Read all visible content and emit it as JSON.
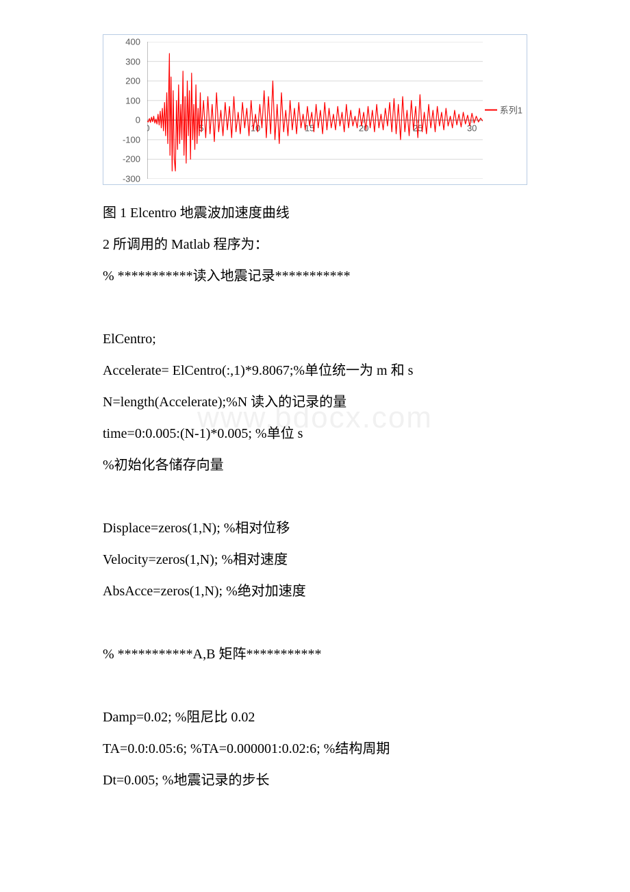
{
  "chart": {
    "type": "line",
    "series_name": "系列1",
    "series_color": "#ff0000",
    "line_width": 1.2,
    "background_color": "#ffffff",
    "border_color": "#b8cce4",
    "grid_color": "#d9d9d9",
    "axis_color": "#808080",
    "tick_font_color": "#595959",
    "tick_fontsize": 13,
    "xlim": [
      0,
      31
    ],
    "ylim": [
      -300,
      400
    ],
    "ytick_step": 100,
    "yticks": [
      400,
      300,
      200,
      100,
      0,
      -100,
      -200,
      -300
    ],
    "xticks": [
      0,
      5,
      10,
      15,
      20,
      25,
      30
    ],
    "data": [
      [
        0,
        -5
      ],
      [
        0.1,
        -10
      ],
      [
        0.2,
        8
      ],
      [
        0.3,
        -12
      ],
      [
        0.4,
        15
      ],
      [
        0.5,
        -8
      ],
      [
        0.6,
        20
      ],
      [
        0.7,
        -15
      ],
      [
        0.8,
        5
      ],
      [
        0.9,
        -20
      ],
      [
        1,
        30
      ],
      [
        1.1,
        -25
      ],
      [
        1.2,
        45
      ],
      [
        1.3,
        -40
      ],
      [
        1.4,
        60
      ],
      [
        1.5,
        -55
      ],
      [
        1.6,
        90
      ],
      [
        1.7,
        -80
      ],
      [
        1.8,
        140
      ],
      [
        1.9,
        -120
      ],
      [
        2,
        190
      ],
      [
        2.05,
        340
      ],
      [
        2.1,
        -180
      ],
      [
        2.2,
        220
      ],
      [
        2.3,
        -260
      ],
      [
        2.4,
        150
      ],
      [
        2.5,
        -200
      ],
      [
        2.6,
        -260
      ],
      [
        2.7,
        100
      ],
      [
        2.8,
        -150
      ],
      [
        2.9,
        180
      ],
      [
        3,
        -120
      ],
      [
        3.1,
        80
      ],
      [
        3.2,
        -100
      ],
      [
        3.3,
        250
      ],
      [
        3.4,
        -180
      ],
      [
        3.5,
        120
      ],
      [
        3.6,
        -220
      ],
      [
        3.7,
        200
      ],
      [
        3.8,
        -80
      ],
      [
        3.9,
        150
      ],
      [
        4,
        -200
      ],
      [
        4.1,
        240
      ],
      [
        4.2,
        -100
      ],
      [
        4.3,
        80
      ],
      [
        4.4,
        -150
      ],
      [
        4.5,
        180
      ],
      [
        4.6,
        -120
      ],
      [
        4.7,
        60
      ],
      [
        4.8,
        -80
      ],
      [
        4.9,
        140
      ],
      [
        5,
        -60
      ],
      [
        5.2,
        100
      ],
      [
        5.4,
        -90
      ],
      [
        5.6,
        120
      ],
      [
        5.8,
        -70
      ],
      [
        6,
        80
      ],
      [
        6.2,
        -110
      ],
      [
        6.4,
        140
      ],
      [
        6.6,
        -60
      ],
      [
        6.8,
        50
      ],
      [
        7,
        -80
      ],
      [
        7.2,
        90
      ],
      [
        7.4,
        -50
      ],
      [
        7.6,
        70
      ],
      [
        7.8,
        -90
      ],
      [
        8,
        120
      ],
      [
        8.2,
        -60
      ],
      [
        8.4,
        40
      ],
      [
        8.6,
        -70
      ],
      [
        8.8,
        90
      ],
      [
        9,
        -40
      ],
      [
        9.2,
        60
      ],
      [
        9.4,
        -80
      ],
      [
        9.6,
        100
      ],
      [
        9.8,
        -50
      ],
      [
        10,
        30
      ],
      [
        10.2,
        -60
      ],
      [
        10.4,
        80
      ],
      [
        10.6,
        -40
      ],
      [
        10.8,
        150
      ],
      [
        11,
        -90
      ],
      [
        11.2,
        120
      ],
      [
        11.4,
        -70
      ],
      [
        11.6,
        200
      ],
      [
        11.8,
        -100
      ],
      [
        12,
        80
      ],
      [
        12.2,
        -120
      ],
      [
        12.4,
        140
      ],
      [
        12.6,
        -60
      ],
      [
        12.8,
        50
      ],
      [
        13,
        -80
      ],
      [
        13.2,
        100
      ],
      [
        13.4,
        -50
      ],
      [
        13.6,
        60
      ],
      [
        13.8,
        -70
      ],
      [
        14,
        90
      ],
      [
        14.2,
        -40
      ],
      [
        14.4,
        30
      ],
      [
        14.6,
        -50
      ],
      [
        14.8,
        70
      ],
      [
        15,
        -30
      ],
      [
        15.2,
        40
      ],
      [
        15.4,
        -60
      ],
      [
        15.6,
        80
      ],
      [
        15.8,
        -40
      ],
      [
        16,
        50
      ],
      [
        16.2,
        -70
      ],
      [
        16.4,
        90
      ],
      [
        16.6,
        -50
      ],
      [
        16.8,
        60
      ],
      [
        17,
        -40
      ],
      [
        17.2,
        30
      ],
      [
        17.4,
        -50
      ],
      [
        17.6,
        70
      ],
      [
        17.8,
        -30
      ],
      [
        18,
        40
      ],
      [
        18.2,
        -60
      ],
      [
        18.4,
        80
      ],
      [
        18.6,
        -40
      ],
      [
        18.8,
        50
      ],
      [
        19,
        -30
      ],
      [
        19.2,
        20
      ],
      [
        19.4,
        -40
      ],
      [
        19.6,
        60
      ],
      [
        19.8,
        -30
      ],
      [
        20,
        40
      ],
      [
        20.2,
        -50
      ],
      [
        20.4,
        70
      ],
      [
        20.6,
        -40
      ],
      [
        20.8,
        50
      ],
      [
        21,
        -60
      ],
      [
        21.2,
        80
      ],
      [
        21.4,
        -40
      ],
      [
        21.6,
        30
      ],
      [
        21.8,
        -50
      ],
      [
        22,
        60
      ],
      [
        22.2,
        -30
      ],
      [
        22.4,
        90
      ],
      [
        22.6,
        -60
      ],
      [
        22.8,
        110
      ],
      [
        23,
        -70
      ],
      [
        23.2,
        80
      ],
      [
        23.4,
        -100
      ],
      [
        23.6,
        120
      ],
      [
        23.8,
        -60
      ],
      [
        24,
        50
      ],
      [
        24.2,
        -80
      ],
      [
        24.4,
        100
      ],
      [
        24.6,
        -50
      ],
      [
        24.8,
        70
      ],
      [
        25,
        -90
      ],
      [
        25.2,
        130
      ],
      [
        25.4,
        -60
      ],
      [
        25.6,
        40
      ],
      [
        25.8,
        -70
      ],
      [
        26,
        80
      ],
      [
        26.2,
        -40
      ],
      [
        26.4,
        50
      ],
      [
        26.6,
        -60
      ],
      [
        26.8,
        70
      ],
      [
        27,
        -30
      ],
      [
        27.2,
        40
      ],
      [
        27.4,
        -50
      ],
      [
        27.6,
        60
      ],
      [
        27.8,
        -30
      ],
      [
        28,
        20
      ],
      [
        28.2,
        -40
      ],
      [
        28.4,
        50
      ],
      [
        28.6,
        -25
      ],
      [
        28.8,
        30
      ],
      [
        29,
        -35
      ],
      [
        29.2,
        40
      ],
      [
        29.4,
        -20
      ],
      [
        29.6,
        25
      ],
      [
        29.8,
        -30
      ],
      [
        30,
        35
      ],
      [
        30.2,
        -15
      ],
      [
        30.4,
        20
      ],
      [
        30.6,
        -10
      ],
      [
        30.8,
        10
      ],
      [
        31,
        -5
      ]
    ]
  },
  "watermark": "www.bdocx.com",
  "lines": {
    "caption": "图 1  Elcentro 地震波加速度曲线",
    "l2": "2 所调用的 Matlab 程序为：",
    "l3": "% ***********读入地震记录***********",
    "l4": "ElCentro;",
    "l5": "Accelerate= ElCentro(:,1)*9.8067;%单位统一为 m 和 s",
    "l6": "N=length(Accelerate);%N 读入的记录的量",
    "l7": "time=0:0.005:(N-1)*0.005; %单位 s",
    "l8": "%初始化各储存向量",
    "l9": "Displace=zeros(1,N); %相对位移",
    "l10": "Velocity=zeros(1,N); %相对速度",
    "l11": "AbsAcce=zeros(1,N); %绝对加速度",
    "l12": "% ***********A,B 矩阵***********",
    "l13": "Damp=0.02; %阻尼比 0.02",
    "l14": "TA=0.0:0.05:6; %TA=0.000001:0.02:6; %结构周期",
    "l15": "Dt=0.005; %地震记录的步长"
  }
}
